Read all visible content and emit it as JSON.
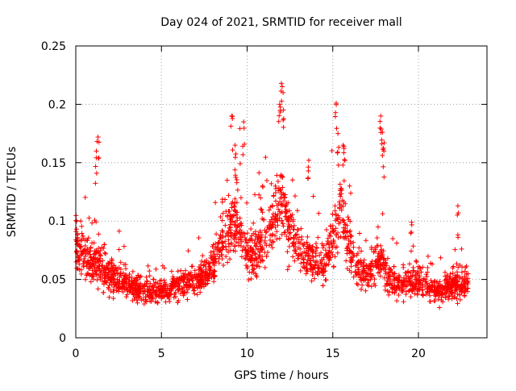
{
  "chart_data": {
    "type": "scatter",
    "title": "Day 024 of 2021, SRMTID for receiver mall",
    "xlabel": "GPS time / hours",
    "ylabel": "SRMTID / TECUs",
    "xlim": [
      0,
      24
    ],
    "ylim": [
      0,
      0.25
    ],
    "x_ticks": [
      0,
      5,
      10,
      15,
      20
    ],
    "x_tick_labels": [
      "0",
      "5",
      "10",
      "15",
      "20"
    ],
    "y_ticks": [
      0,
      0.05,
      0.1,
      0.15,
      0.2,
      0.25
    ],
    "y_tick_labels": [
      "0",
      "0.05",
      "0.1",
      "0.15",
      "0.2",
      "0.25"
    ],
    "grid": true,
    "marker": "+",
    "marker_color": "#ff0000",
    "series": [
      {
        "name": "SRMTID",
        "x_range": [
          0,
          22.9
        ],
        "point_count": 2300,
        "trend": [
          [
            0.0,
            0.085
          ],
          [
            0.5,
            0.07
          ],
          [
            1.0,
            0.065
          ],
          [
            1.5,
            0.06
          ],
          [
            2.0,
            0.055
          ],
          [
            3.0,
            0.045
          ],
          [
            4.0,
            0.04
          ],
          [
            5.0,
            0.04
          ],
          [
            6.0,
            0.045
          ],
          [
            7.0,
            0.048
          ],
          [
            7.8,
            0.055
          ],
          [
            8.5,
            0.085
          ],
          [
            9.0,
            0.095
          ],
          [
            9.6,
            0.095
          ],
          [
            10.0,
            0.07
          ],
          [
            10.5,
            0.075
          ],
          [
            11.0,
            0.085
          ],
          [
            11.5,
            0.095
          ],
          [
            12.0,
            0.12
          ],
          [
            12.5,
            0.09
          ],
          [
            13.0,
            0.075
          ],
          [
            14.0,
            0.065
          ],
          [
            14.5,
            0.06
          ],
          [
            15.0,
            0.085
          ],
          [
            15.5,
            0.11
          ],
          [
            16.0,
            0.075
          ],
          [
            16.5,
            0.06
          ],
          [
            17.0,
            0.055
          ],
          [
            17.8,
            0.07
          ],
          [
            18.3,
            0.05
          ],
          [
            19.0,
            0.045
          ],
          [
            20.0,
            0.05
          ],
          [
            21.0,
            0.04
          ],
          [
            22.0,
            0.045
          ],
          [
            22.9,
            0.045
          ]
        ],
        "peaks": [
          {
            "x": 0.05,
            "y": 0.1
          },
          {
            "x": 1.3,
            "y": 0.172
          },
          {
            "x": 1.2,
            "y": 0.16
          },
          {
            "x": 9.1,
            "y": 0.19
          },
          {
            "x": 9.3,
            "y": 0.165
          },
          {
            "x": 9.8,
            "y": 0.185
          },
          {
            "x": 10.9,
            "y": 0.13
          },
          {
            "x": 12.0,
            "y": 0.218
          },
          {
            "x": 12.1,
            "y": 0.21
          },
          {
            "x": 11.9,
            "y": 0.2
          },
          {
            "x": 13.6,
            "y": 0.152
          },
          {
            "x": 15.2,
            "y": 0.201
          },
          {
            "x": 15.3,
            "y": 0.175
          },
          {
            "x": 15.6,
            "y": 0.165
          },
          {
            "x": 17.8,
            "y": 0.19
          },
          {
            "x": 17.9,
            "y": 0.176
          },
          {
            "x": 18.0,
            "y": 0.167
          },
          {
            "x": 19.6,
            "y": 0.099
          },
          {
            "x": 22.3,
            "y": 0.113
          }
        ]
      }
    ]
  }
}
